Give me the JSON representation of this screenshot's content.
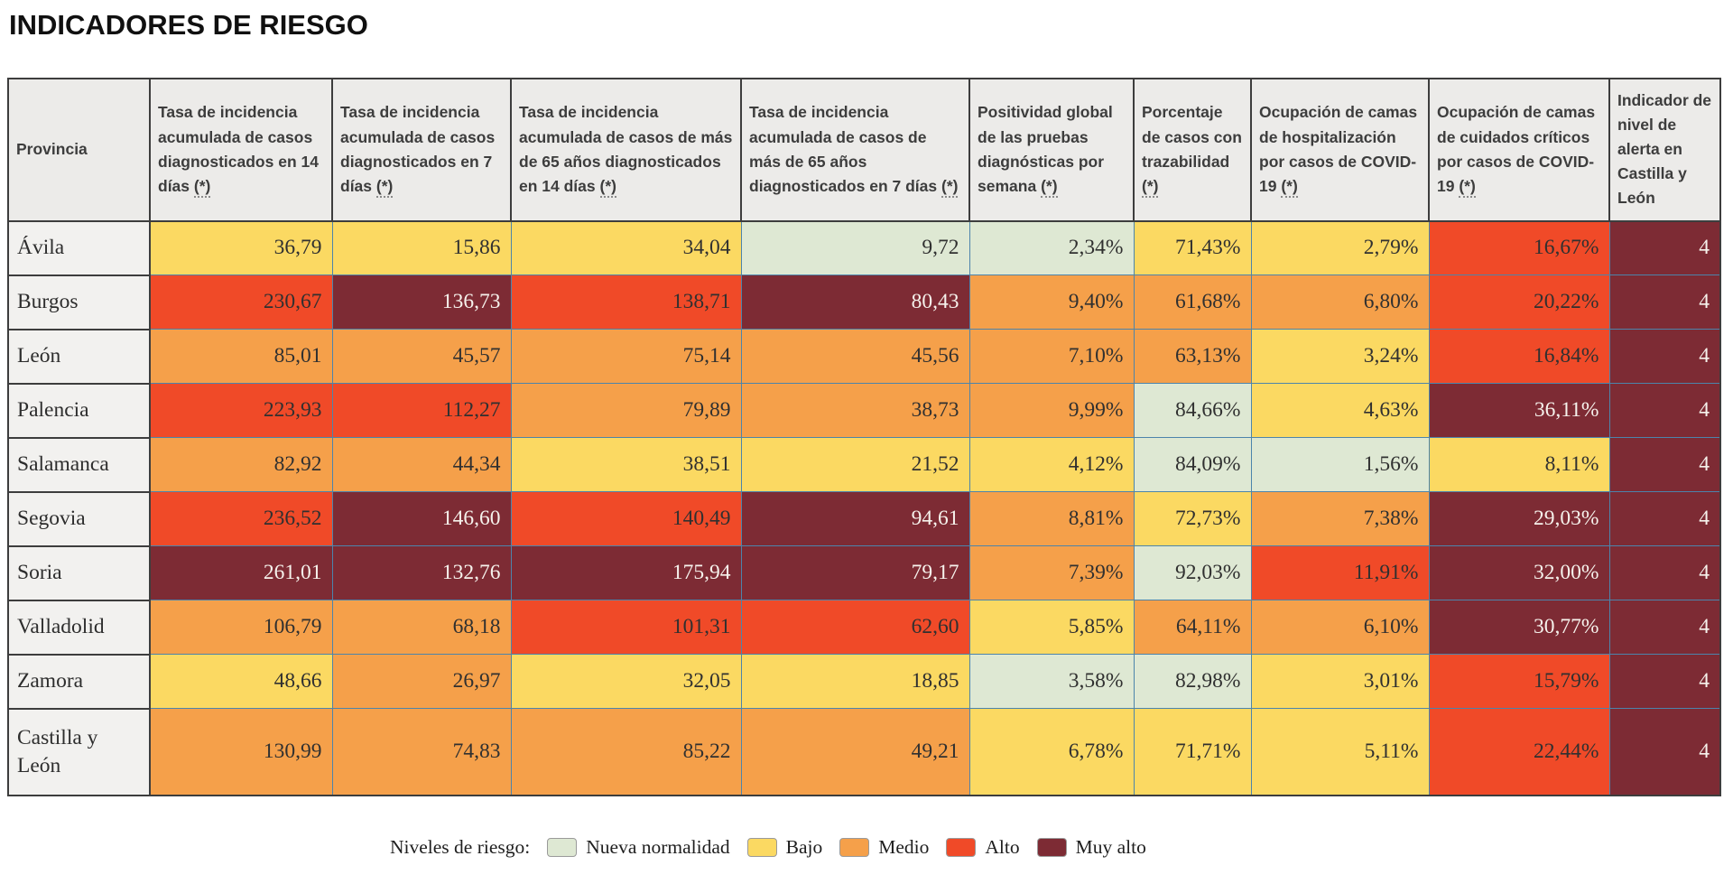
{
  "chart_data": {
    "type": "table",
    "title": "INDICADORES DE RIESGO",
    "risk_colors": {
      "nueva_normalidad": "#dee8d3",
      "bajo": "#fbd962",
      "medio": "#f5a04a",
      "alto": "#f04a28",
      "muy_alto": "#7d2b34"
    },
    "text_colors": {
      "on_light": "#303030",
      "on_dark": "#f6f2ec"
    },
    "columns": [
      {
        "id": "provincia",
        "label": "Provincia",
        "footnote": null
      },
      {
        "id": "ia-14-dias",
        "label": "Tasa de incidencia acumulada de casos diagnosticados en 14 días",
        "footnote": "(*)"
      },
      {
        "id": "ia-7-dias",
        "label": "Tasa de incidencia acumulada de casos diagnosticados en 7 días",
        "footnote": "(*)"
      },
      {
        "id": "ia-65-14-dias",
        "label": "Tasa de incidencia acumulada de casos de más de 65 años diagnosticados en 14 días",
        "footnote": "(*)"
      },
      {
        "id": "ia-65-7-dias",
        "label": "Tasa de incidencia acumulada de casos de más de 65 años diagnosticados en 7 días",
        "footnote": "(*)"
      },
      {
        "id": "positividad",
        "label": "Positividad global de las pruebas diagnósticas por semana",
        "footnote": "(*)"
      },
      {
        "id": "trazabilidad",
        "label": "Porcentaje de casos con trazabilidad",
        "footnote": "(*)"
      },
      {
        "id": "ocupacion-hospitalizacion",
        "label": "Ocupación de camas de hospitalización por casos de COVID-19",
        "footnote": "(*)"
      },
      {
        "id": "ocupacion-criticos",
        "label": "Ocupación de camas de cuidados críticos por casos de COVID-19",
        "footnote": "(*)"
      },
      {
        "id": "nivel-alerta",
        "label": "Indicador de nivel de alerta en Castilla y León",
        "footnote": null
      }
    ],
    "rows": [
      {
        "id": "avila",
        "provincia": "Ávila",
        "tall": false,
        "cells": [
          {
            "value": "36,79",
            "level": "bajo"
          },
          {
            "value": "15,86",
            "level": "bajo"
          },
          {
            "value": "34,04",
            "level": "bajo"
          },
          {
            "value": "9,72",
            "level": "nueva_normalidad"
          },
          {
            "value": "2,34%",
            "level": "nueva_normalidad"
          },
          {
            "value": "71,43%",
            "level": "bajo"
          },
          {
            "value": "2,79%",
            "level": "bajo"
          },
          {
            "value": "16,67%",
            "level": "alto"
          },
          {
            "value": "4",
            "level": "muy_alto"
          }
        ]
      },
      {
        "id": "burgos",
        "provincia": "Burgos",
        "tall": false,
        "cells": [
          {
            "value": "230,67",
            "level": "alto"
          },
          {
            "value": "136,73",
            "level": "muy_alto"
          },
          {
            "value": "138,71",
            "level": "alto"
          },
          {
            "value": "80,43",
            "level": "muy_alto"
          },
          {
            "value": "9,40%",
            "level": "medio"
          },
          {
            "value": "61,68%",
            "level": "medio"
          },
          {
            "value": "6,80%",
            "level": "medio"
          },
          {
            "value": "20,22%",
            "level": "alto"
          },
          {
            "value": "4",
            "level": "muy_alto"
          }
        ]
      },
      {
        "id": "leon",
        "provincia": "León",
        "tall": false,
        "cells": [
          {
            "value": "85,01",
            "level": "medio"
          },
          {
            "value": "45,57",
            "level": "medio"
          },
          {
            "value": "75,14",
            "level": "medio"
          },
          {
            "value": "45,56",
            "level": "medio"
          },
          {
            "value": "7,10%",
            "level": "medio"
          },
          {
            "value": "63,13%",
            "level": "medio"
          },
          {
            "value": "3,24%",
            "level": "bajo"
          },
          {
            "value": "16,84%",
            "level": "alto"
          },
          {
            "value": "4",
            "level": "muy_alto"
          }
        ]
      },
      {
        "id": "palencia",
        "provincia": "Palencia",
        "tall": false,
        "cells": [
          {
            "value": "223,93",
            "level": "alto"
          },
          {
            "value": "112,27",
            "level": "alto"
          },
          {
            "value": "79,89",
            "level": "medio"
          },
          {
            "value": "38,73",
            "level": "medio"
          },
          {
            "value": "9,99%",
            "level": "medio"
          },
          {
            "value": "84,66%",
            "level": "nueva_normalidad"
          },
          {
            "value": "4,63%",
            "level": "bajo"
          },
          {
            "value": "36,11%",
            "level": "muy_alto"
          },
          {
            "value": "4",
            "level": "muy_alto"
          }
        ]
      },
      {
        "id": "salamanca",
        "provincia": "Salamanca",
        "tall": false,
        "cells": [
          {
            "value": "82,92",
            "level": "medio"
          },
          {
            "value": "44,34",
            "level": "medio"
          },
          {
            "value": "38,51",
            "level": "bajo"
          },
          {
            "value": "21,52",
            "level": "bajo"
          },
          {
            "value": "4,12%",
            "level": "bajo"
          },
          {
            "value": "84,09%",
            "level": "nueva_normalidad"
          },
          {
            "value": "1,56%",
            "level": "nueva_normalidad"
          },
          {
            "value": "8,11%",
            "level": "bajo"
          },
          {
            "value": "4",
            "level": "muy_alto"
          }
        ]
      },
      {
        "id": "segovia",
        "provincia": "Segovia",
        "tall": false,
        "cells": [
          {
            "value": "236,52",
            "level": "alto"
          },
          {
            "value": "146,60",
            "level": "muy_alto"
          },
          {
            "value": "140,49",
            "level": "alto"
          },
          {
            "value": "94,61",
            "level": "muy_alto"
          },
          {
            "value": "8,81%",
            "level": "medio"
          },
          {
            "value": "72,73%",
            "level": "bajo"
          },
          {
            "value": "7,38%",
            "level": "medio"
          },
          {
            "value": "29,03%",
            "level": "muy_alto"
          },
          {
            "value": "4",
            "level": "muy_alto"
          }
        ]
      },
      {
        "id": "soria",
        "provincia": "Soria",
        "tall": false,
        "cells": [
          {
            "value": "261,01",
            "level": "muy_alto"
          },
          {
            "value": "132,76",
            "level": "muy_alto"
          },
          {
            "value": "175,94",
            "level": "muy_alto"
          },
          {
            "value": "79,17",
            "level": "muy_alto"
          },
          {
            "value": "7,39%",
            "level": "medio"
          },
          {
            "value": "92,03%",
            "level": "nueva_normalidad"
          },
          {
            "value": "11,91%",
            "level": "alto"
          },
          {
            "value": "32,00%",
            "level": "muy_alto"
          },
          {
            "value": "4",
            "level": "muy_alto"
          }
        ]
      },
      {
        "id": "valladolid",
        "provincia": "Valladolid",
        "tall": false,
        "cells": [
          {
            "value": "106,79",
            "level": "medio"
          },
          {
            "value": "68,18",
            "level": "medio"
          },
          {
            "value": "101,31",
            "level": "alto"
          },
          {
            "value": "62,60",
            "level": "alto"
          },
          {
            "value": "5,85%",
            "level": "bajo"
          },
          {
            "value": "64,11%",
            "level": "medio"
          },
          {
            "value": "6,10%",
            "level": "medio"
          },
          {
            "value": "30,77%",
            "level": "muy_alto"
          },
          {
            "value": "4",
            "level": "muy_alto"
          }
        ]
      },
      {
        "id": "zamora",
        "provincia": "Zamora",
        "tall": false,
        "cells": [
          {
            "value": "48,66",
            "level": "bajo"
          },
          {
            "value": "26,97",
            "level": "medio"
          },
          {
            "value": "32,05",
            "level": "bajo"
          },
          {
            "value": "18,85",
            "level": "bajo"
          },
          {
            "value": "3,58%",
            "level": "nueva_normalidad"
          },
          {
            "value": "82,98%",
            "level": "nueva_normalidad"
          },
          {
            "value": "3,01%",
            "level": "bajo"
          },
          {
            "value": "15,79%",
            "level": "alto"
          },
          {
            "value": "4",
            "level": "muy_alto"
          }
        ]
      },
      {
        "id": "castilla-y-leon",
        "provincia": "Castilla y León",
        "tall": true,
        "cells": [
          {
            "value": "130,99",
            "level": "medio"
          },
          {
            "value": "74,83",
            "level": "medio"
          },
          {
            "value": "85,22",
            "level": "medio"
          },
          {
            "value": "49,21",
            "level": "medio"
          },
          {
            "value": "6,78%",
            "level": "bajo"
          },
          {
            "value": "71,71%",
            "level": "bajo"
          },
          {
            "value": "5,11%",
            "level": "bajo"
          },
          {
            "value": "22,44%",
            "level": "alto"
          },
          {
            "value": "4",
            "level": "muy_alto"
          }
        ]
      }
    ],
    "legend": {
      "label": "Niveles de riesgo:",
      "items": [
        {
          "level": "nueva_normalidad",
          "label": "Nueva normalidad"
        },
        {
          "level": "bajo",
          "label": "Bajo"
        },
        {
          "level": "medio",
          "label": "Medio"
        },
        {
          "level": "alto",
          "label": "Alto"
        },
        {
          "level": "muy_alto",
          "label": "Muy alto"
        }
      ]
    }
  }
}
